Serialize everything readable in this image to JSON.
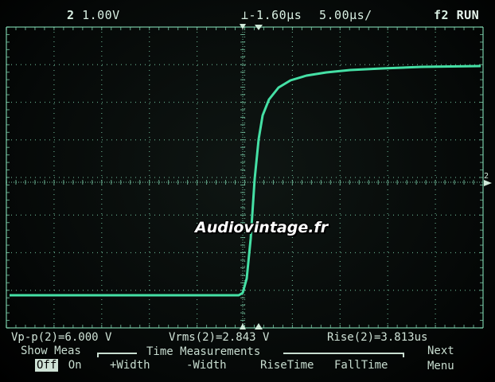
{
  "header": {
    "channel_number": "2",
    "channel_scale": "1.00V",
    "trigger_level": "-1.60",
    "trigger_unit": "µ",
    "trigger_suffix": "s",
    "timebase": "5.00",
    "timebase_unit": "µ",
    "timebase_suffix": "s/",
    "trigger_source": "f2",
    "run_state": "RUN"
  },
  "marker_channel": "2",
  "watermark": "Audiovintage.fr",
  "trace": {
    "color": "#45e0a5",
    "description_points": [
      [
        12,
        371
      ],
      [
        300,
        371
      ],
      [
        305,
        368
      ],
      [
        310,
        350
      ],
      [
        315,
        300
      ],
      [
        320,
        225
      ],
      [
        325,
        175
      ],
      [
        330,
        145
      ],
      [
        338,
        125
      ],
      [
        350,
        110
      ],
      [
        365,
        101
      ],
      [
        385,
        95
      ],
      [
        410,
        91
      ],
      [
        440,
        88
      ],
      [
        480,
        86
      ],
      [
        530,
        84
      ],
      [
        604,
        83
      ]
    ]
  },
  "measurements": {
    "vpp": "Vp-p(2)=6.000 V",
    "vrms": "Vrms(2)=2.843 V",
    "rise": "Rise(2)=3.813us"
  },
  "softkeys": {
    "show_meas_title": "Show Meas",
    "off": "Off",
    "on": "On",
    "group_title": "Time Measurements",
    "plus_width": "+Width",
    "minus_width": "-Width",
    "rise_time": "RiseTime",
    "fall_time": "FallTime",
    "next_line1": "Next",
    "next_line2": "Menu"
  },
  "colors": {
    "grid": "#7fd6b0",
    "trace": "#45e0a5",
    "text": "#cfe2d6"
  }
}
